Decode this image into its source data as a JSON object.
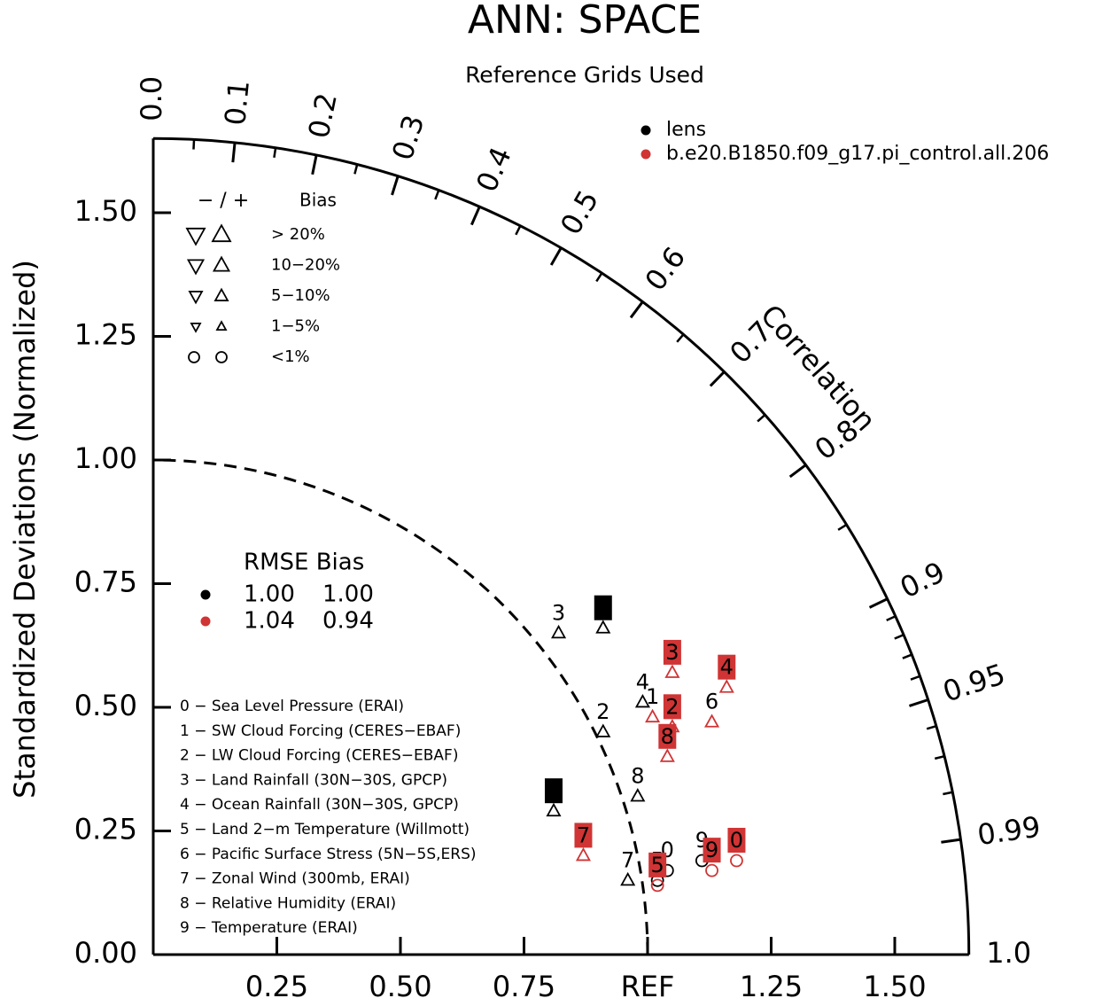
{
  "chart_data": {
    "type": "scatter",
    "subtype": "taylor-diagram",
    "title": "ANN: SPACE",
    "subtitle": "Reference Grids Used",
    "ylabel": "Standardized Deviations (Normalized)",
    "arc_label": "Correlation",
    "ref_label": "REF",
    "std_ticks": [
      "0.00",
      "0.25",
      "0.50",
      "0.75",
      "1.00",
      "1.25",
      "1.50"
    ],
    "x_ticks": [
      "0.25",
      "0.50",
      "0.75",
      "1.25",
      "1.50"
    ],
    "std_range": [
      0,
      1.65
    ],
    "correlation_ticks": [
      "0.0",
      "0.1",
      "0.2",
      "0.3",
      "0.4",
      "0.5",
      "0.6",
      "0.7",
      "0.8",
      "0.9",
      "0.95",
      "0.99",
      "1.0"
    ],
    "correlation_values": [
      0.0,
      0.1,
      0.2,
      0.3,
      0.4,
      0.5,
      0.6,
      0.7,
      0.8,
      0.9,
      0.95,
      0.99,
      1.0
    ],
    "grid": false,
    "legend_position": "top-right",
    "colors": {
      "lens": "#000000",
      "control": "#d03434"
    },
    "case_legend": [
      {
        "name": "lens",
        "color": "#000000"
      },
      {
        "name": "b.e20.B1850.f09_g17.pi_control.all.206",
        "color": "#d03434"
      }
    ],
    "bias_legend": {
      "header_signs": "−  /  +",
      "header_bias": "Bias",
      "rows": [
        "> 20%",
        "10−20%",
        "5−10%",
        "1−5%",
        "<1%"
      ]
    },
    "rmse_table": {
      "header": "RMSE Bias",
      "rows": [
        {
          "color": "#000000",
          "rmse": "1.00",
          "bias": "1.00"
        },
        {
          "color": "#d03434",
          "rmse": "1.04",
          "bias": "0.94"
        }
      ]
    },
    "variables": [
      "0 − Sea Level Pressure (ERAI)",
      "1 − SW Cloud Forcing (CERES−EBAF)",
      "2 − LW Cloud Forcing (CERES−EBAF)",
      "3 − Land Rainfall (30N−30S, GPCP)",
      "4 − Ocean Rainfall (30N−30S, GPCP)",
      "5 − Land 2−m Temperature (Willmott)",
      "6 − Pacific Surface Stress (5N−5S,ERS)",
      "7 − Zonal Wind (300mb, ERAI)",
      "8 − Relative Humidity (ERAI)",
      "9 − Temperature (ERAI)"
    ],
    "series": [
      {
        "name": "lens",
        "color": "#000000",
        "points": [
          {
            "id": "0",
            "x": 1.04,
            "y": 0.17,
            "marker": "circle",
            "boxed": false
          },
          {
            "id": "1",
            "x": 0.91,
            "y": 0.66,
            "marker": "tri-up",
            "boxed": true
          },
          {
            "id": "2",
            "x": 0.91,
            "y": 0.45,
            "marker": "tri-up",
            "boxed": false
          },
          {
            "id": "3",
            "x": 0.82,
            "y": 0.65,
            "marker": "tri-up",
            "boxed": false
          },
          {
            "id": "4",
            "x": 0.99,
            "y": 0.51,
            "marker": "tri-up",
            "boxed": false
          },
          {
            "id": "5",
            "x": 1.02,
            "y": 0.15,
            "marker": "circle",
            "boxed": false
          },
          {
            "id": "6",
            "x": 0.81,
            "y": 0.29,
            "marker": "tri-up",
            "boxed": true
          },
          {
            "id": "7",
            "x": 0.96,
            "y": 0.15,
            "marker": "tri-up",
            "boxed": false
          },
          {
            "id": "8",
            "x": 0.98,
            "y": 0.32,
            "marker": "tri-up",
            "boxed": false
          },
          {
            "id": "9",
            "x": 1.11,
            "y": 0.19,
            "marker": "circle",
            "boxed": false
          }
        ]
      },
      {
        "name": "b.e20.B1850.f09_g17.pi_control.all.206",
        "color": "#d03434",
        "points": [
          {
            "id": "0",
            "x": 1.18,
            "y": 0.19,
            "marker": "circle",
            "boxed": true
          },
          {
            "id": "1",
            "x": 1.01,
            "y": 0.48,
            "marker": "tri-up",
            "boxed": false
          },
          {
            "id": "2",
            "x": 1.05,
            "y": 0.46,
            "marker": "tri-up",
            "boxed": true
          },
          {
            "id": "3",
            "x": 1.05,
            "y": 0.57,
            "marker": "tri-up",
            "boxed": true
          },
          {
            "id": "4",
            "x": 1.16,
            "y": 0.54,
            "marker": "tri-up",
            "boxed": true
          },
          {
            "id": "5",
            "x": 1.02,
            "y": 0.14,
            "marker": "circle",
            "boxed": true
          },
          {
            "id": "6",
            "x": 1.13,
            "y": 0.47,
            "marker": "tri-up",
            "boxed": false
          },
          {
            "id": "7",
            "x": 0.87,
            "y": 0.2,
            "marker": "tri-up",
            "boxed": true
          },
          {
            "id": "8",
            "x": 1.04,
            "y": 0.4,
            "marker": "tri-up",
            "boxed": true
          },
          {
            "id": "9",
            "x": 1.13,
            "y": 0.17,
            "marker": "circle",
            "boxed": true
          }
        ]
      }
    ]
  }
}
